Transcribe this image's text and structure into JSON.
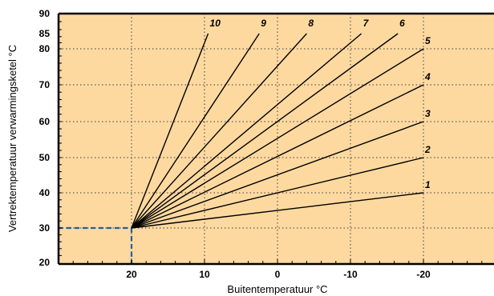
{
  "chart_data": {
    "type": "line",
    "xlabel": "Buitentemperatuur °C",
    "ylabel": "Vertrektemperatuur verwarmingsketel °C",
    "xlim": [
      30,
      -30
    ],
    "ylim": [
      20,
      90
    ],
    "x_ticks": [
      20,
      10,
      0,
      -10,
      -20
    ],
    "x_tick_labels": [
      "20",
      "10",
      "0",
      "-10",
      "-20"
    ],
    "y_ticks": [
      20,
      30,
      40,
      50,
      60,
      70,
      80,
      85,
      90
    ],
    "y_tick_labels": [
      "20",
      "30",
      "40",
      "50",
      "60",
      "70",
      "80",
      "85",
      "90"
    ],
    "grid": true,
    "reference_point": {
      "x": 20,
      "y": 30
    },
    "series": [
      {
        "name": "1",
        "x": [
          20,
          -20
        ],
        "y": [
          30,
          40
        ]
      },
      {
        "name": "2",
        "x": [
          20,
          -20
        ],
        "y": [
          30,
          50
        ]
      },
      {
        "name": "3",
        "x": [
          20,
          -20
        ],
        "y": [
          30,
          60
        ]
      },
      {
        "name": "4",
        "x": [
          20,
          -20
        ],
        "y": [
          30,
          70
        ]
      },
      {
        "name": "5",
        "x": [
          20,
          -20
        ],
        "y": [
          30,
          80
        ]
      },
      {
        "name": "6",
        "x": [
          20,
          -16.5
        ],
        "y": [
          30,
          85
        ]
      },
      {
        "name": "7",
        "x": [
          20,
          -11.5
        ],
        "y": [
          30,
          85
        ]
      },
      {
        "name": "8",
        "x": [
          20,
          -4
        ],
        "y": [
          30,
          85
        ]
      },
      {
        "name": "9",
        "x": [
          20,
          2.5
        ],
        "y": [
          30,
          85
        ]
      },
      {
        "name": "10",
        "x": [
          20,
          9.5
        ],
        "y": [
          30,
          85
        ]
      }
    ],
    "colors": {
      "background": "#fdd9a0",
      "reference": "#1f5fa8",
      "line": "#000000"
    }
  }
}
